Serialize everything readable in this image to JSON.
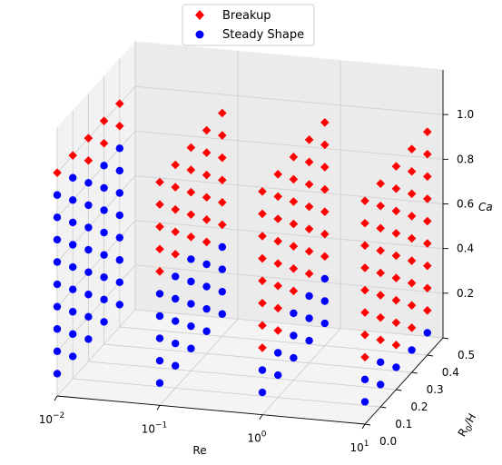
{
  "chart_data": {
    "type": "scatter",
    "projection": "3d",
    "xlabel": "Re",
    "ylabel": "R",
    "ylabel_sub": "0",
    "ylabel_tail": "/H",
    "zlabel": "Ca",
    "x_scale": "log",
    "x_tick_labels": [
      {
        "base": "10",
        "exp": "−2"
      },
      {
        "base": "10",
        "exp": "−1"
      },
      {
        "base": "10",
        "exp": "0"
      },
      {
        "base": "10",
        "exp": "1"
      }
    ],
    "y_tick_labels": [
      "0.0",
      "0.1",
      "0.2",
      "0.3",
      "0.4",
      "0.5"
    ],
    "z_tick_labels": [
      "0.2",
      "0.4",
      "0.6",
      "0.8",
      "1.0"
    ],
    "grid": true,
    "legend_position": "top-center",
    "legend": [
      {
        "label": "Breakup",
        "color": "#ff0000",
        "marker": "diamond"
      },
      {
        "label": "Steady Shape",
        "color": "#0000ff",
        "marker": "circle"
      }
    ],
    "re_values": [
      0.01,
      0.1,
      1,
      10
    ],
    "r0h_values": [
      0.0,
      0.1,
      0.2,
      0.3,
      0.4
    ],
    "ca_values": [
      0.1,
      0.2,
      0.3,
      0.4,
      0.5,
      0.6,
      0.7,
      0.8,
      0.9,
      1.0
    ],
    "critical_ca": [
      {
        "re": 0.01,
        "values_by_r0h": [
          1.0,
          1.0,
          0.9,
          0.9,
          0.9
        ]
      },
      {
        "re": 0.1,
        "values_by_r0h": [
          0.6,
          0.6,
          0.6,
          0.5,
          0.5
        ]
      },
      {
        "re": 1,
        "values_by_r0h": [
          0.3,
          0.3,
          0.4,
          0.4,
          0.4
        ]
      },
      {
        "re": 10,
        "values_by_r0h": [
          0.3,
          0.3,
          0.2,
          0.2,
          0.2
        ]
      }
    ]
  }
}
